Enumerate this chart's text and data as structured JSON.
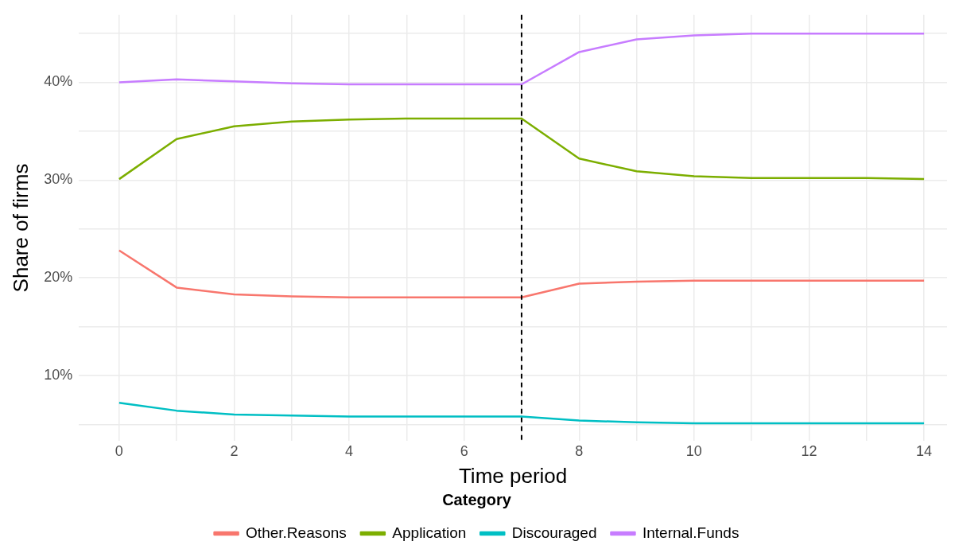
{
  "chart_data": {
    "type": "line",
    "xlabel": "Time period",
    "ylabel": "Share of firms",
    "legend_title": "Category",
    "legend": "bottom",
    "grid": true,
    "marker": "none",
    "line_style": "solid",
    "x": [
      0,
      1,
      2,
      3,
      4,
      5,
      6,
      7,
      8,
      9,
      10,
      11,
      12,
      13,
      14
    ],
    "xlim": [
      -0.7,
      14.4
    ],
    "xticks": [
      0,
      {
        "value": 1,
        "label": null
      },
      2,
      {
        "value": 3,
        "label": null
      },
      4,
      {
        "value": 5,
        "label": null
      },
      6,
      {
        "value": 7,
        "label": null
      },
      8,
      {
        "value": 9,
        "label": null
      },
      10,
      {
        "value": 11,
        "label": null
      },
      12,
      {
        "value": 13,
        "label": null
      },
      14
    ],
    "ylim": [
      3.3,
      46.9
    ],
    "yticks": [
      {
        "value": 5,
        "label": null
      },
      {
        "value": 10,
        "label": "10%"
      },
      {
        "value": 15,
        "label": null
      },
      {
        "value": 20,
        "label": "20%"
      },
      {
        "value": 25,
        "label": null
      },
      {
        "value": 30,
        "label": "30%"
      },
      {
        "value": 35,
        "label": null
      },
      {
        "value": 40,
        "label": "40%"
      },
      {
        "value": 45,
        "label": null
      }
    ],
    "series": [
      {
        "name": "Other.Reasons",
        "color": "#f8766d",
        "values": [
          22.8,
          19.0,
          18.3,
          18.1,
          18.0,
          18.0,
          18.0,
          18.0,
          19.4,
          19.6,
          19.7,
          19.7,
          19.7,
          19.7,
          19.7
        ]
      },
      {
        "name": "Application",
        "color": "#7cae00",
        "values": [
          30.1,
          34.2,
          35.5,
          36.0,
          36.2,
          36.3,
          36.3,
          36.3,
          32.2,
          30.9,
          30.4,
          30.2,
          30.2,
          30.2,
          30.1
        ]
      },
      {
        "name": "Discouraged",
        "color": "#00bfc4",
        "values": [
          7.2,
          6.4,
          6.0,
          5.9,
          5.8,
          5.8,
          5.8,
          5.8,
          5.4,
          5.2,
          5.1,
          5.1,
          5.1,
          5.1,
          5.1
        ]
      },
      {
        "name": "Internal.Funds",
        "color": "#c77cff",
        "values": [
          40.0,
          40.3,
          40.1,
          39.9,
          39.8,
          39.8,
          39.8,
          39.8,
          43.1,
          44.4,
          44.8,
          45.0,
          45.0,
          45.0,
          45.0
        ]
      }
    ],
    "ref_lines": [
      {
        "axis": "x",
        "value": 7,
        "color": "#000000",
        "line_style": "dashed"
      }
    ]
  }
}
